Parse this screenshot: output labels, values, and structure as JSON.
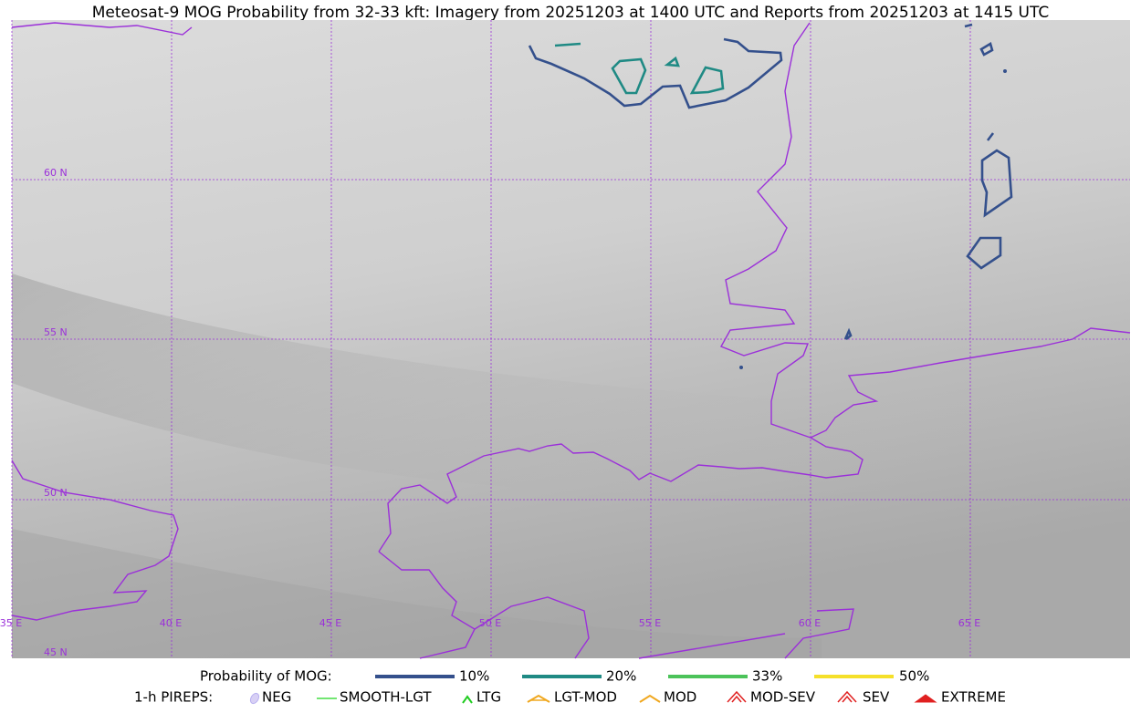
{
  "title": "Meteosat-9 MOG Probability from 32-33 kft: Imagery from 20251203 at 1400 UTC and Reports from 20251203 at 1415 UTC",
  "map": {
    "lat_labels": [
      "60 N",
      "55 N",
      "50 N",
      "45 N"
    ],
    "lon_labels": [
      "35 E",
      "40 E",
      "45 E",
      "50 E",
      "55 E",
      "60 E",
      "65 E"
    ]
  },
  "legend": {
    "probability": {
      "label": "Probability of MOG:",
      "items": [
        "10%",
        "20%",
        "33%",
        "50%"
      ]
    },
    "pireps": {
      "label": "1-h PIREPS:",
      "items": [
        "NEG",
        "SMOOTH-LGT",
        "LTG",
        "LGT-MOD",
        "MOD",
        "MOD-SEV",
        "SEV",
        "EXTREME"
      ]
    }
  }
}
